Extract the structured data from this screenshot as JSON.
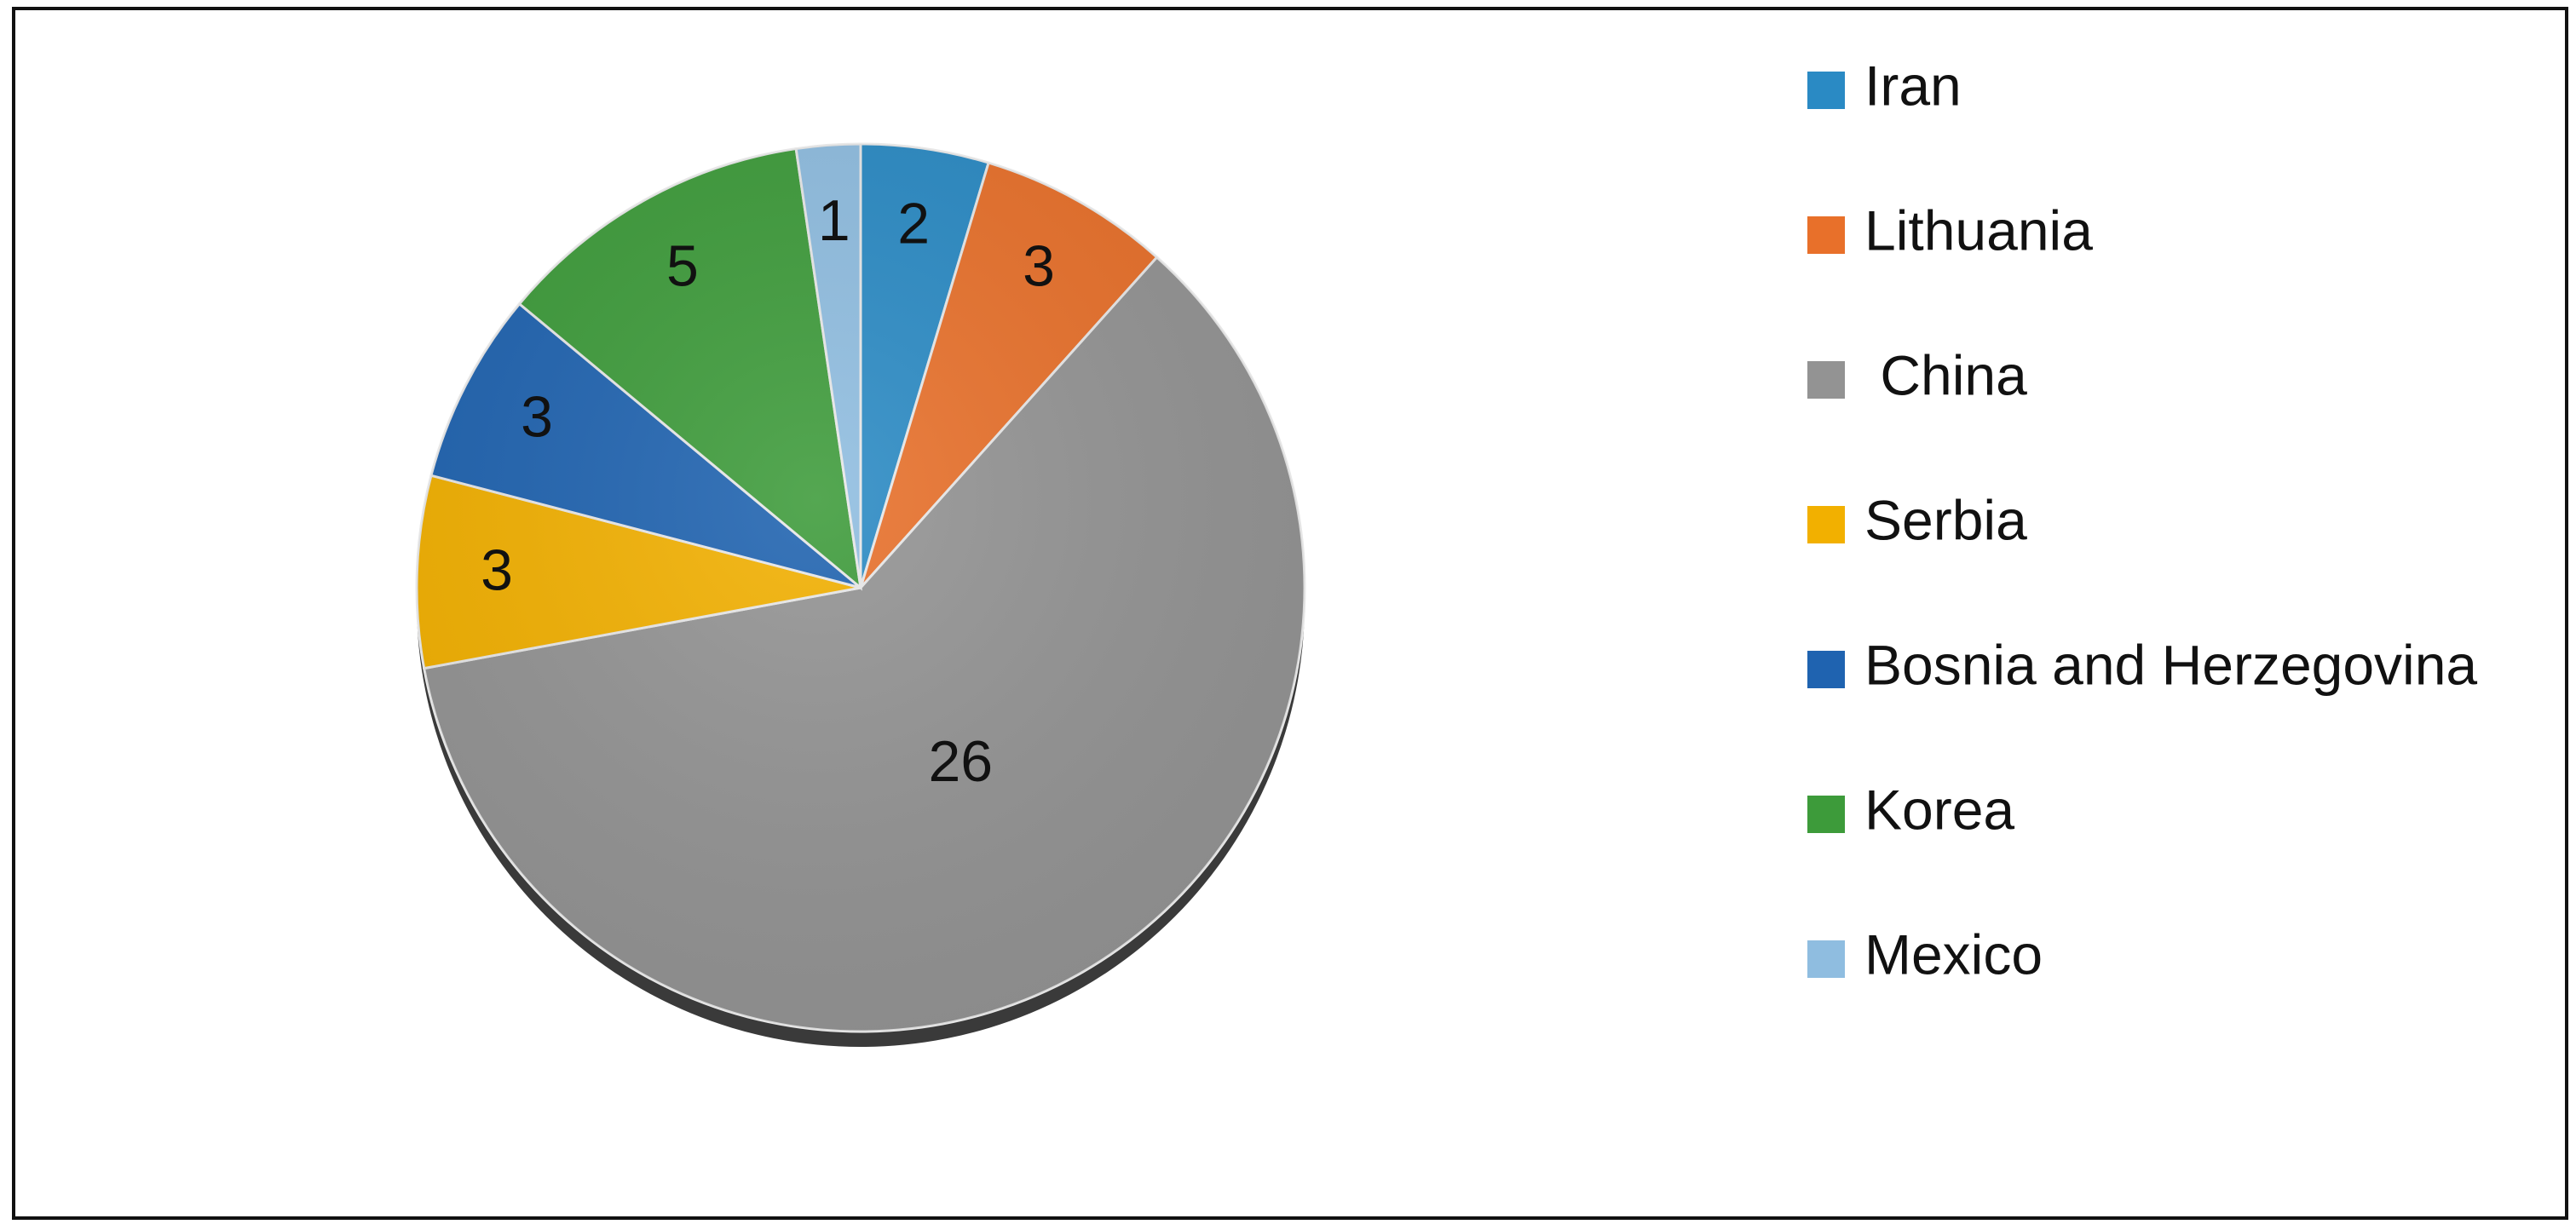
{
  "chart_data": {
    "type": "pie",
    "categories": [
      "Iran",
      "Lithuania",
      " China",
      "Serbia",
      "Bosnia and Herzegovina",
      "Korea",
      "Mexico"
    ],
    "values": [
      2,
      3,
      26,
      3,
      3,
      5,
      1
    ],
    "colors": [
      "#2a8ac4",
      "#e8702a",
      "#939393",
      "#f2b000",
      "#1f63b0",
      "#3d9b3a",
      "#8fbde0"
    ],
    "legend": "right"
  }
}
